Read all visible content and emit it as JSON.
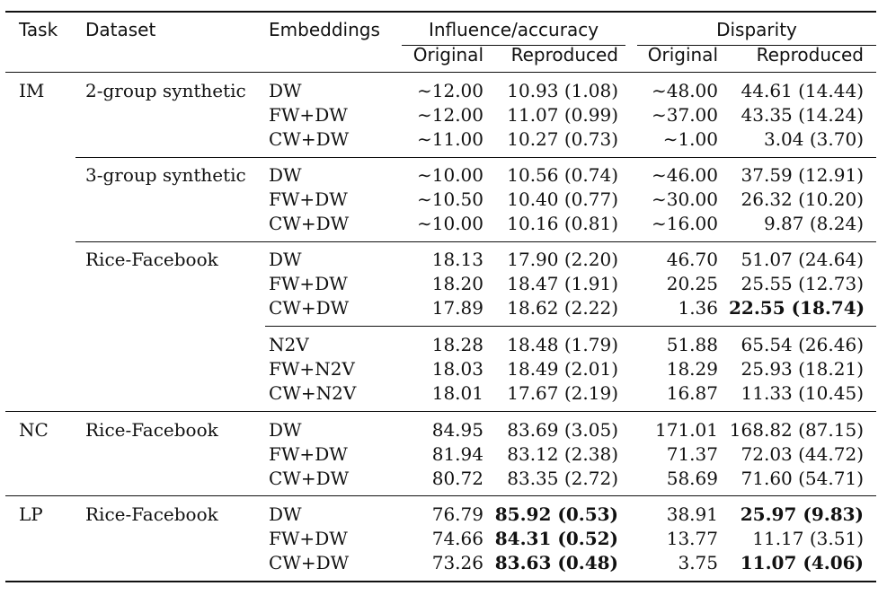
{
  "header": {
    "task": "Task",
    "dataset": "Dataset",
    "embeddings": "Embeddings",
    "influence_accuracy": "Influence/accuracy",
    "disparity": "Disparity",
    "original": "Original",
    "reproduced": "Reproduced"
  },
  "rows": [
    {
      "task": "IM",
      "dataset": "2-group synthetic",
      "emb": "DW",
      "io": "∼12.00",
      "ir": "10.93 (1.08)",
      "do": "∼48.00",
      "dr": "44.61 (14.44)",
      "ir_bold": false,
      "dr_bold": false
    },
    {
      "task": "",
      "dataset": "",
      "emb": "FW+DW",
      "io": "∼12.00",
      "ir": "11.07 (0.99)",
      "do": "∼37.00",
      "dr": "43.35 (14.24)",
      "ir_bold": false,
      "dr_bold": false
    },
    {
      "task": "",
      "dataset": "",
      "emb": "CW+DW",
      "io": "∼11.00",
      "ir": "10.27 (0.73)",
      "do": "∼1.00",
      "dr": "3.04 (3.70)",
      "ir_bold": false,
      "dr_bold": false
    },
    {
      "task": "",
      "dataset": "3-group synthetic",
      "emb": "DW",
      "io": "∼10.00",
      "ir": "10.56 (0.74)",
      "do": "∼46.00",
      "dr": "37.59 (12.91)",
      "ir_bold": false,
      "dr_bold": false
    },
    {
      "task": "",
      "dataset": "",
      "emb": "FW+DW",
      "io": "∼10.50",
      "ir": "10.40 (0.77)",
      "do": "∼30.00",
      "dr": "26.32 (10.20)",
      "ir_bold": false,
      "dr_bold": false
    },
    {
      "task": "",
      "dataset": "",
      "emb": "CW+DW",
      "io": "∼10.00",
      "ir": "10.16 (0.81)",
      "do": "∼16.00",
      "dr": "9.87 (8.24)",
      "ir_bold": false,
      "dr_bold": false
    },
    {
      "task": "",
      "dataset": "Rice-Facebook",
      "emb": "DW",
      "io": "18.13",
      "ir": "17.90 (2.20)",
      "do": "46.70",
      "dr": "51.07 (24.64)",
      "ir_bold": false,
      "dr_bold": false
    },
    {
      "task": "",
      "dataset": "",
      "emb": "FW+DW",
      "io": "18.20",
      "ir": "18.47 (1.91)",
      "do": "20.25",
      "dr": "25.55 (12.73)",
      "ir_bold": false,
      "dr_bold": false
    },
    {
      "task": "",
      "dataset": "",
      "emb": "CW+DW",
      "io": "17.89",
      "ir": "18.62 (2.22)",
      "do": "1.36",
      "dr": "22.55 (18.74)",
      "ir_bold": false,
      "dr_bold": true
    },
    {
      "task": "",
      "dataset": "",
      "emb": "N2V",
      "io": "18.28",
      "ir": "18.48 (1.79)",
      "do": "51.88",
      "dr": "65.54 (26.46)",
      "ir_bold": false,
      "dr_bold": false
    },
    {
      "task": "",
      "dataset": "",
      "emb": "FW+N2V",
      "io": "18.03",
      "ir": "18.49 (2.01)",
      "do": "18.29",
      "dr": "25.93 (18.21)",
      "ir_bold": false,
      "dr_bold": false
    },
    {
      "task": "",
      "dataset": "",
      "emb": "CW+N2V",
      "io": "18.01",
      "ir": "17.67 (2.19)",
      "do": "16.87",
      "dr": "11.33 (10.45)",
      "ir_bold": false,
      "dr_bold": false
    },
    {
      "task": "NC",
      "dataset": "Rice-Facebook",
      "emb": "DW",
      "io": "84.95",
      "ir": "83.69 (3.05)",
      "do": "171.01",
      "dr": "168.82 (87.15)",
      "ir_bold": false,
      "dr_bold": false
    },
    {
      "task": "",
      "dataset": "",
      "emb": "FW+DW",
      "io": "81.94",
      "ir": "83.12 (2.38)",
      "do": "71.37",
      "dr": "72.03 (44.72)",
      "ir_bold": false,
      "dr_bold": false
    },
    {
      "task": "",
      "dataset": "",
      "emb": "CW+DW",
      "io": "80.72",
      "ir": "83.35 (2.72)",
      "do": "58.69",
      "dr": "71.60 (54.71)",
      "ir_bold": false,
      "dr_bold": false
    },
    {
      "task": "LP",
      "dataset": "Rice-Facebook",
      "emb": "DW",
      "io": "76.79",
      "ir": "85.92 (0.53)",
      "do": "38.91",
      "dr": "25.97 (9.83)",
      "ir_bold": true,
      "dr_bold": true
    },
    {
      "task": "",
      "dataset": "",
      "emb": "FW+DW",
      "io": "74.66",
      "ir": "84.31 (0.52)",
      "do": "13.77",
      "dr": "11.17 (3.51)",
      "ir_bold": true,
      "dr_bold": false
    },
    {
      "task": "",
      "dataset": "",
      "emb": "CW+DW",
      "io": "73.26",
      "ir": "83.63 (0.48)",
      "do": "3.75",
      "dr": "11.07 (4.06)",
      "ir_bold": true,
      "dr_bold": true
    }
  ]
}
